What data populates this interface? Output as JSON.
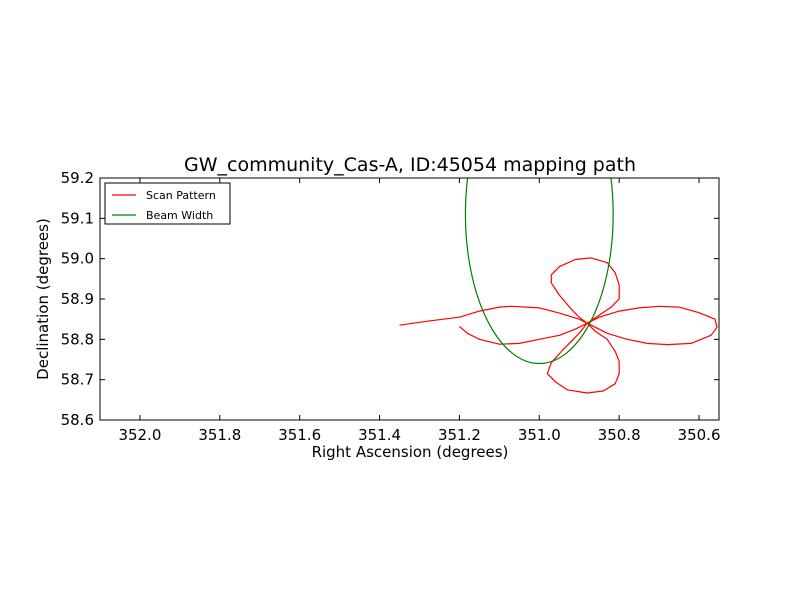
{
  "chart_data": {
    "type": "line",
    "title": "GW_community_Cas-A, ID:45054 mapping path",
    "xlabel": "Right Ascension (degrees)",
    "ylabel": "Declination (degrees)",
    "xlim": [
      352.1,
      350.55
    ],
    "ylim": [
      58.6,
      59.2
    ],
    "x_inverted": true,
    "xticks": [
      352.0,
      351.8,
      351.6,
      351.4,
      351.2,
      351.0,
      350.8,
      350.6
    ],
    "xtick_labels": [
      "352.0",
      "351.8",
      "351.6",
      "351.4",
      "351.2",
      "351.0",
      "350.8",
      "350.6"
    ],
    "yticks": [
      58.6,
      58.7,
      58.8,
      58.9,
      59.0,
      59.1,
      59.2
    ],
    "ytick_labels": [
      "58.6",
      "58.7",
      "58.8",
      "58.9",
      "59.0",
      "59.1",
      "59.2"
    ],
    "grid": false,
    "legend_position": "top-left",
    "series": [
      {
        "name": "Scan Pattern",
        "kind": "path",
        "color": "#ff0000",
        "x": [
          351.35,
          351.28,
          351.2,
          351.15,
          351.1,
          351.07,
          351.0,
          350.95,
          350.9,
          350.88,
          350.85,
          350.8,
          350.75,
          350.7,
          350.65,
          350.6,
          350.56,
          350.555,
          350.57,
          350.62,
          350.68,
          350.73,
          350.78,
          350.83,
          350.86,
          350.88,
          350.85,
          350.82,
          350.8,
          350.8,
          350.81,
          350.83,
          350.87,
          350.91,
          350.95,
          350.97,
          350.97,
          350.95,
          350.92,
          350.9,
          350.88,
          350.86,
          350.83,
          350.81,
          350.8,
          350.8,
          350.81,
          350.84,
          350.88,
          350.93,
          350.96,
          350.98,
          350.97,
          350.94,
          350.9,
          350.88,
          350.91,
          350.95,
          351.0,
          351.05,
          351.1,
          351.15,
          351.18,
          351.2
        ],
        "y": [
          58.835,
          58.845,
          58.855,
          58.87,
          58.88,
          58.882,
          58.878,
          58.865,
          58.85,
          58.84,
          58.855,
          58.87,
          58.878,
          58.882,
          58.88,
          58.866,
          58.85,
          58.83,
          58.81,
          58.79,
          58.787,
          58.79,
          58.8,
          58.815,
          58.83,
          58.84,
          58.86,
          58.88,
          58.9,
          58.935,
          58.965,
          58.99,
          59.002,
          58.998,
          58.98,
          58.96,
          58.94,
          58.91,
          58.875,
          58.855,
          58.84,
          58.82,
          58.8,
          58.77,
          58.745,
          58.715,
          58.69,
          58.672,
          58.667,
          58.675,
          58.695,
          58.715,
          58.742,
          58.775,
          58.815,
          58.84,
          58.825,
          58.81,
          58.8,
          58.79,
          58.788,
          58.8,
          58.815,
          58.832
        ]
      },
      {
        "name": "Beam Width",
        "kind": "circle",
        "color": "#008000",
        "center": [
          351.0,
          59.11
        ],
        "radius_x": 0.185,
        "radius_y": 0.37
      }
    ]
  }
}
